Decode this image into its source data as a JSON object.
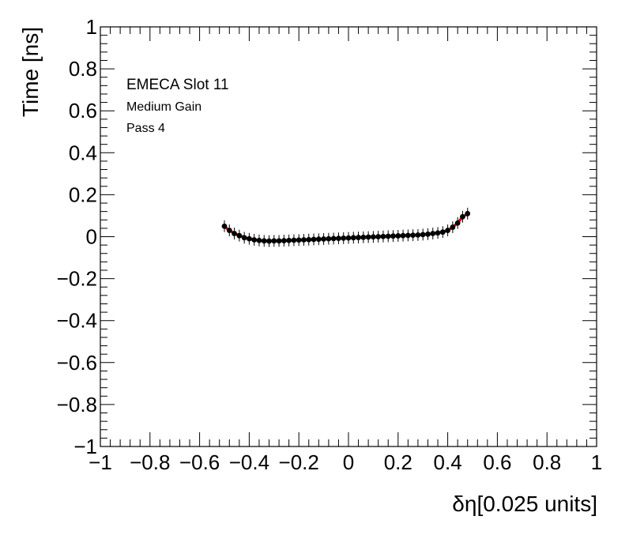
{
  "chart_data": {
    "type": "scatter",
    "title": "",
    "xlabel": "δη[0.025 units]",
    "ylabel": "Time [ns]",
    "xlim": [
      -1,
      1
    ],
    "ylim": [
      -1,
      1
    ],
    "x_ticks": [
      -1,
      -0.8,
      -0.6,
      -0.4,
      -0.2,
      0,
      0.2,
      0.4,
      0.6,
      0.8,
      1
    ],
    "y_ticks": [
      -1,
      -0.8,
      -0.6,
      -0.4,
      -0.2,
      0,
      0.2,
      0.4,
      0.6,
      0.8,
      1
    ],
    "x_tick_labels": [
      "−1",
      "−0.8",
      "−0.6",
      "−0.4",
      "−0.2",
      "0",
      "0.2",
      "0.4",
      "0.6",
      "0.8",
      "1"
    ],
    "y_tick_labels": [
      "−1",
      "−0.8",
      "−0.6",
      "−0.4",
      "−0.2",
      "0",
      "0.2",
      "0.4",
      "0.6",
      "0.8",
      "1"
    ],
    "grid": false,
    "annotations": [
      "EMECA Slot 11",
      "Medium Gain",
      "Pass 4"
    ],
    "series": [
      {
        "color": "#000000",
        "marker": "circle",
        "y_error": 0.028,
        "x": [
          -0.5,
          -0.48,
          -0.46,
          -0.44,
          -0.42,
          -0.4,
          -0.38,
          -0.36,
          -0.34,
          -0.32,
          -0.3,
          -0.28,
          -0.26,
          -0.24,
          -0.22,
          -0.2,
          -0.18,
          -0.16,
          -0.14,
          -0.12,
          -0.1,
          -0.08,
          -0.06,
          -0.04,
          -0.02,
          0,
          0.02,
          0.04,
          0.06,
          0.08,
          0.1,
          0.12,
          0.14,
          0.16,
          0.18,
          0.2,
          0.22,
          0.24,
          0.26,
          0.28,
          0.3,
          0.32,
          0.34,
          0.36,
          0.38,
          0.4,
          0.42,
          0.44,
          0.46,
          0.48
        ],
        "y": [
          0.05,
          0.03,
          0.015,
          0.005,
          -0.005,
          -0.01,
          -0.015,
          -0.018,
          -0.02,
          -0.021,
          -0.02,
          -0.02,
          -0.019,
          -0.018,
          -0.017,
          -0.016,
          -0.015,
          -0.014,
          -0.013,
          -0.012,
          -0.011,
          -0.01,
          -0.009,
          -0.008,
          -0.007,
          -0.006,
          -0.005,
          -0.004,
          -0.003,
          -0.002,
          -0.001,
          0.0,
          0.001,
          0.002,
          0.003,
          0.004,
          0.005,
          0.006,
          0.007,
          0.008,
          0.01,
          0.012,
          0.015,
          0.018,
          0.022,
          0.03,
          0.045,
          0.065,
          0.095,
          0.11
        ]
      },
      {
        "color": "#dd0000",
        "marker": "line",
        "x": [
          -0.5,
          -0.48,
          -0.46,
          -0.44,
          -0.42,
          -0.4,
          -0.38,
          -0.36,
          -0.34,
          -0.32,
          -0.3,
          -0.28,
          -0.26,
          -0.24,
          -0.22,
          -0.2,
          -0.18,
          -0.16,
          -0.14,
          -0.12,
          -0.1,
          -0.08,
          -0.06,
          -0.04,
          -0.02,
          0,
          0.02,
          0.04,
          0.06,
          0.08,
          0.1,
          0.12,
          0.14,
          0.16,
          0.18,
          0.2,
          0.22,
          0.24,
          0.26,
          0.28,
          0.3,
          0.32,
          0.34,
          0.36,
          0.38,
          0.4,
          0.42,
          0.44,
          0.46,
          0.48
        ],
        "y": [
          0.048,
          0.03,
          0.016,
          0.006,
          -0.004,
          -0.01,
          -0.015,
          -0.018,
          -0.02,
          -0.021,
          -0.02,
          -0.02,
          -0.019,
          -0.018,
          -0.017,
          -0.016,
          -0.015,
          -0.014,
          -0.013,
          -0.012,
          -0.011,
          -0.01,
          -0.009,
          -0.008,
          -0.007,
          -0.006,
          -0.005,
          -0.004,
          -0.003,
          -0.002,
          -0.001,
          0.0,
          0.001,
          0.002,
          0.003,
          0.004,
          0.005,
          0.006,
          0.007,
          0.008,
          0.01,
          0.012,
          0.015,
          0.018,
          0.022,
          0.03,
          0.045,
          0.066,
          0.094,
          0.11
        ]
      }
    ]
  }
}
